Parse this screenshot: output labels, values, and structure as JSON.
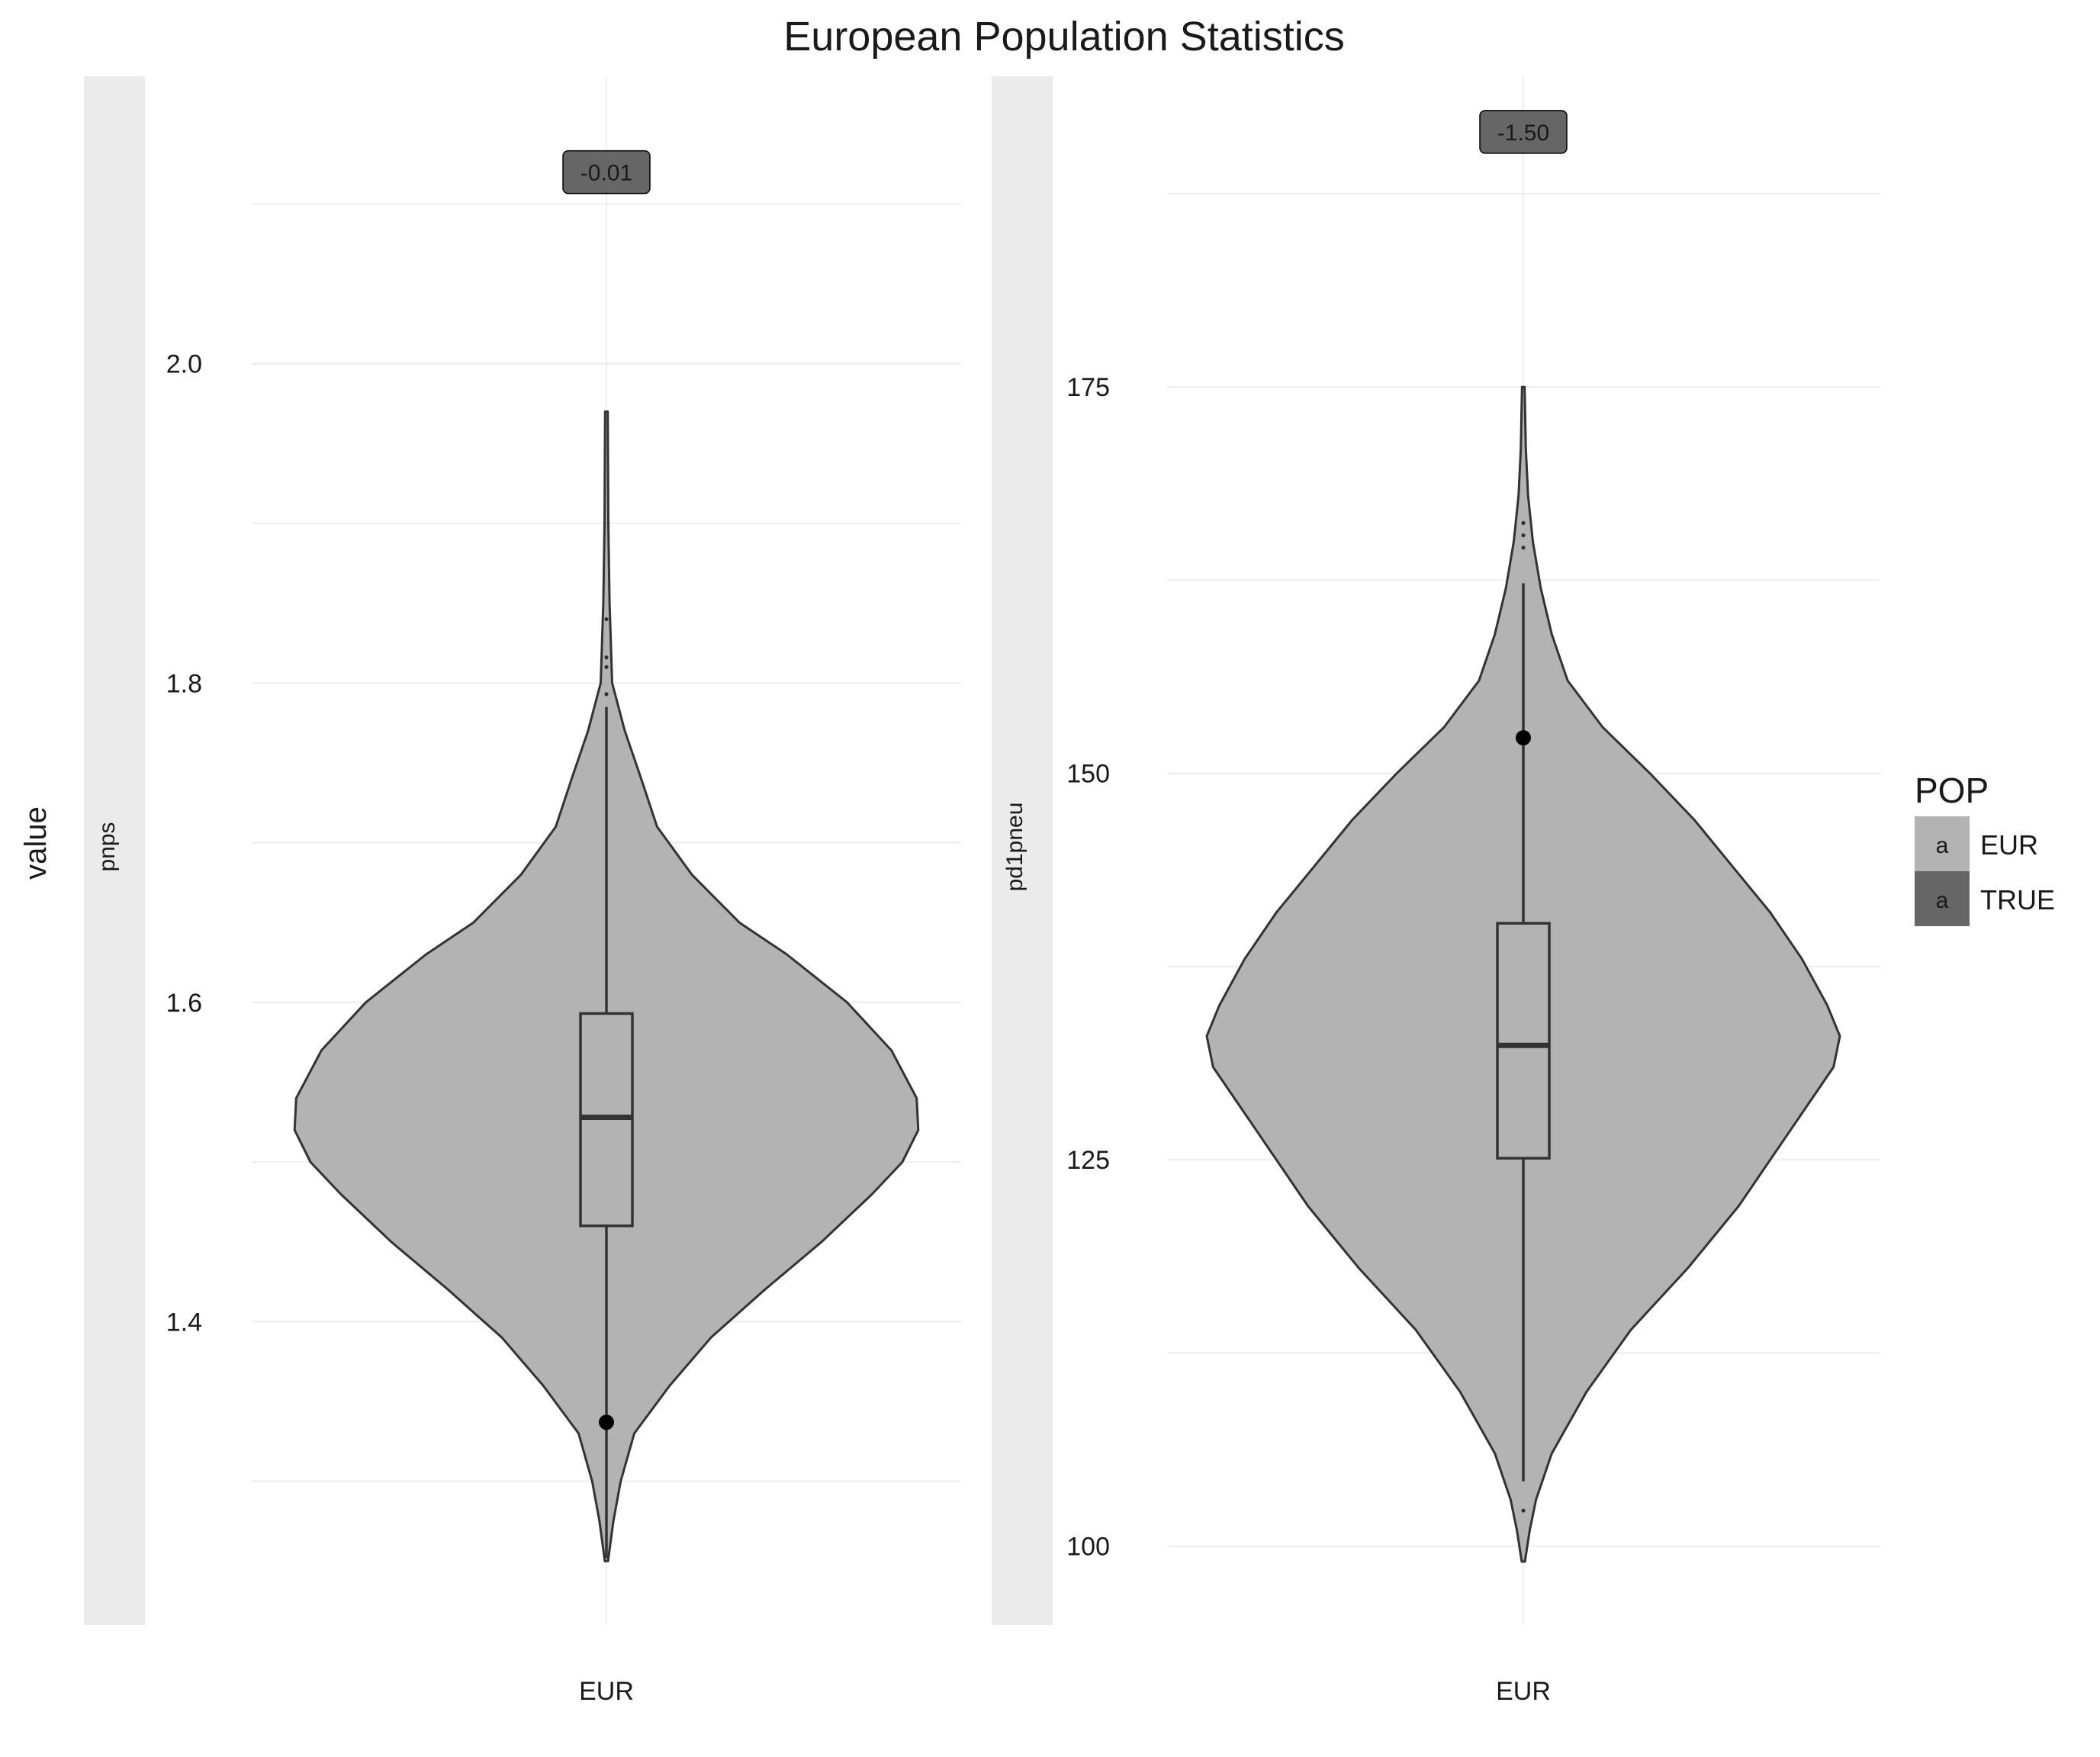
{
  "title": "European Population Statistics",
  "y_axis_title": "value",
  "legend": {
    "title": "POP",
    "key_glyph": "a",
    "items": [
      {
        "label": "EUR",
        "color": "#b3b3b3"
      },
      {
        "label": "TRUE",
        "color": "#666666"
      }
    ]
  },
  "colors": {
    "violin_fill": "#b3b3b3",
    "violin_stroke": "#333333",
    "strip_bg": "#ebebeb",
    "grid": "#ebebeb",
    "label_box": "#666666"
  },
  "chart_data": [
    {
      "type": "violin",
      "facet": "pnps",
      "category": "EUR",
      "ylim": [
        1.21,
        2.18
      ],
      "yticks": [
        1.4,
        1.6,
        1.8,
        2.0
      ],
      "ytick_labels": [
        "1.4",
        "1.6",
        "1.8",
        "2.0"
      ],
      "annotation": "-0.01",
      "annotation_y": 2.12,
      "highlight_point": 1.337,
      "box": {
        "q1": 1.46,
        "median": 1.528,
        "q3": 1.593,
        "whisker_low": 1.252,
        "whisker_high": 1.785
      },
      "outliers": [
        1.793,
        1.81,
        1.816,
        1.84
      ],
      "violin_min": 1.25,
      "violin_max": 1.97,
      "density_profile": [
        [
          1.25,
          0.005
        ],
        [
          1.275,
          0.022
        ],
        [
          1.3,
          0.045
        ],
        [
          1.33,
          0.088
        ],
        [
          1.36,
          0.2
        ],
        [
          1.39,
          0.33
        ],
        [
          1.42,
          0.5
        ],
        [
          1.45,
          0.68
        ],
        [
          1.48,
          0.84
        ],
        [
          1.5,
          0.935
        ],
        [
          1.52,
          0.985
        ],
        [
          1.54,
          0.98
        ],
        [
          1.57,
          0.9
        ],
        [
          1.6,
          0.76
        ],
        [
          1.63,
          0.57
        ],
        [
          1.65,
          0.42
        ],
        [
          1.68,
          0.27
        ],
        [
          1.71,
          0.16
        ],
        [
          1.74,
          0.11
        ],
        [
          1.77,
          0.058
        ],
        [
          1.8,
          0.018
        ],
        [
          1.85,
          0.01
        ],
        [
          1.9,
          0.006
        ],
        [
          1.97,
          0.004
        ]
      ]
    },
    {
      "type": "violin",
      "facet": "pd1pneu",
      "category": "EUR",
      "ylim": [
        94.9,
        195.1
      ],
      "yticks": [
        100,
        125,
        150,
        175
      ],
      "ytick_labels": [
        "100",
        "125",
        "150",
        "175"
      ],
      "annotation": "-1.50",
      "annotation_y": 191.5,
      "highlight_point": 152.3,
      "box": {
        "q1": 125.1,
        "median": 132.4,
        "q3": 140.3,
        "whisker_low": 104.2,
        "whisker_high": 162.3
      },
      "outliers": [
        102.3,
        164.6,
        165.4,
        166.2
      ],
      "violin_min": 99,
      "violin_max": 175,
      "density_profile": [
        [
          99,
          0.005
        ],
        [
          101,
          0.02
        ],
        [
          103,
          0.04
        ],
        [
          106,
          0.09
        ],
        [
          110,
          0.2
        ],
        [
          114,
          0.34
        ],
        [
          118,
          0.52
        ],
        [
          122,
          0.68
        ],
        [
          125,
          0.78
        ],
        [
          128,
          0.88
        ],
        [
          131,
          0.98
        ],
        [
          133,
          1.0
        ],
        [
          135,
          0.96
        ],
        [
          138,
          0.88
        ],
        [
          141,
          0.78
        ],
        [
          144,
          0.66
        ],
        [
          147,
          0.54
        ],
        [
          150,
          0.4
        ],
        [
          153,
          0.25
        ],
        [
          156,
          0.14
        ],
        [
          159,
          0.09
        ],
        [
          162,
          0.055
        ],
        [
          165,
          0.03
        ],
        [
          168,
          0.015
        ],
        [
          171,
          0.008
        ],
        [
          175,
          0.004
        ]
      ]
    }
  ]
}
